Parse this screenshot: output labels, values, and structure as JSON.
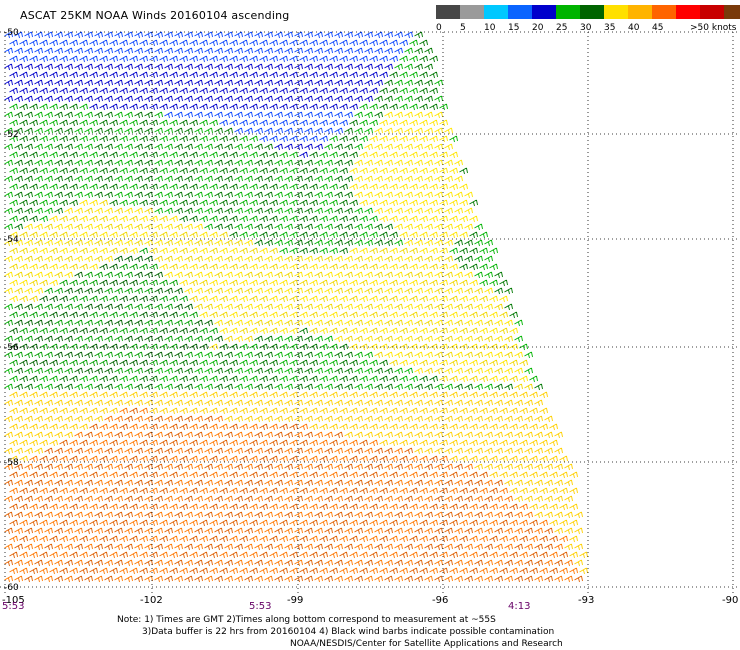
{
  "title": "ASCAT 25KM NOAA Winds 20160104 ascending",
  "legend": {
    "colors": [
      "#474747",
      "#9a9a9a",
      "#00c8ff",
      "#0a64ff",
      "#0000cc",
      "#00b400",
      "#006400",
      "#ffe000",
      "#ffb400",
      "#ff6400",
      "#ff0000",
      "#c80000",
      "#7a3a0a",
      "#ff00ff",
      "#b400ff",
      "#6400c8"
    ],
    "labels": [
      "0",
      "5",
      "10",
      "15",
      "20",
      "25",
      "30",
      "35",
      "40",
      "45",
      ">50 knots"
    ]
  },
  "lat_labels": [
    "-50",
    "-52",
    "-54",
    "-56",
    "-58",
    "-60"
  ],
  "lon_labels": [
    "-105",
    "-102",
    "-99",
    "-96",
    "-93",
    "-90"
  ],
  "time_labels": [
    "5:53",
    "5:53",
    "4:13"
  ],
  "notes": [
    "Note: 1) Times are GMT 2)Times along bottom correspond to measurement at ~55S",
    "3)Data buffer is 22 hrs from 20160104 4) Black wind barbs indicate possible contamination",
    "NOAA/NESDIS/Center for Satellite Applications and Research"
  ]
}
